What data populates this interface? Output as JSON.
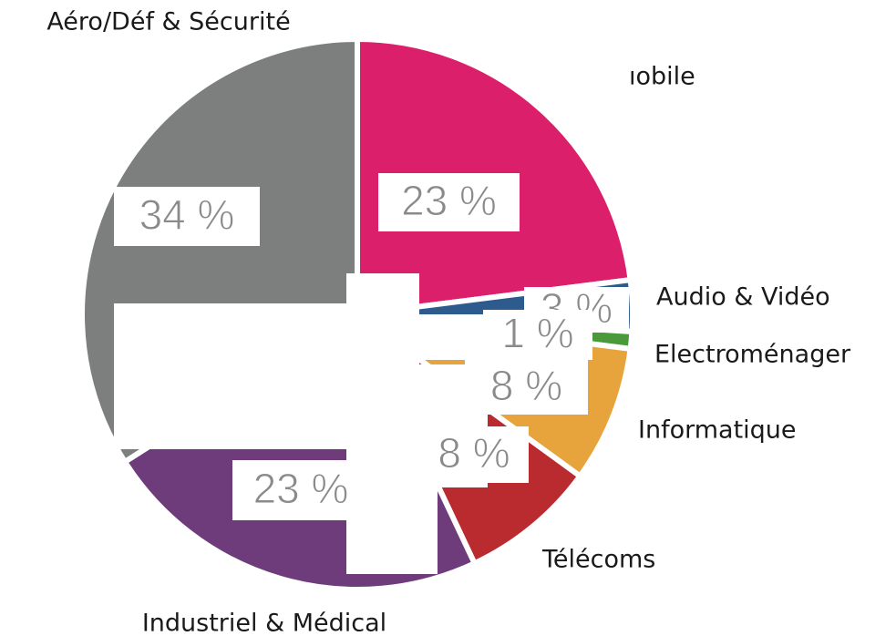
{
  "chart_data": {
    "type": "pie",
    "categories": [
      "ıobile",
      "Audio & Vidéo",
      "Electroménager",
      "Informatique",
      "Télécoms",
      "Industriel & Médical",
      "Aéro/Déf & Sécurité"
    ],
    "values": [
      23,
      3,
      1,
      8,
      8,
      23,
      34
    ],
    "value_labels": [
      "23 %",
      "3 %",
      "1 %",
      "8 %",
      "8 %",
      "23 %",
      "34 %"
    ],
    "colors": [
      "#dc1f6a",
      "#2d5b8e",
      "#4a9a3c",
      "#e8a43c",
      "#ba2b30",
      "#6e3c7a",
      "#7d7f7e"
    ]
  }
}
